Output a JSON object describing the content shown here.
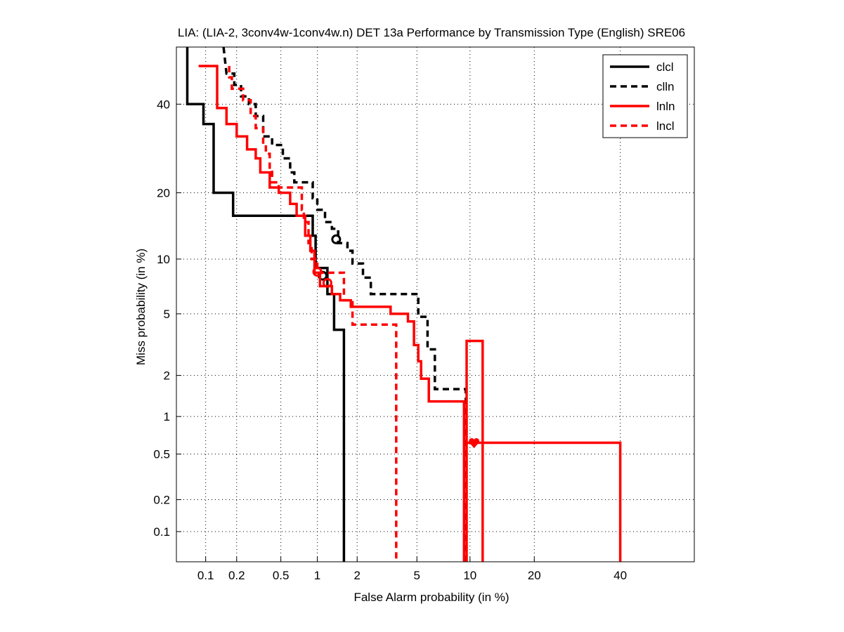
{
  "chart_data": {
    "type": "line",
    "title": "LIA: (LIA-2, 3conv4w-1conv4w.n) DET 13a Performance by Transmission Type (English) SRE06",
    "xlabel": "False Alarm probability (in %)",
    "ylabel": "Miss probability (in %)",
    "x_scale": "normal-deviate",
    "y_scale": "normal-deviate",
    "xlim": [
      0.05,
      60
    ],
    "ylim": [
      0.05,
      55
    ],
    "x_ticks": [
      0.1,
      0.2,
      0.5,
      1,
      2,
      5,
      10,
      20,
      40
    ],
    "x_tick_labels": [
      "0.1",
      "0.2",
      "0.5",
      "1",
      "2",
      "5",
      "10",
      "20",
      "40"
    ],
    "y_ticks": [
      0.1,
      0.2,
      0.5,
      1,
      2,
      5,
      10,
      20,
      40
    ],
    "y_tick_labels": [
      "0.1",
      "0.2",
      "0.5",
      "1",
      "2",
      "5",
      "10",
      "20",
      "40"
    ],
    "grid": true,
    "legend_position": "top-right",
    "series": [
      {
        "name": "clcl",
        "color": "#000000",
        "dash": "solid",
        "points": [
          [
            0.065,
            60
          ],
          [
            0.065,
            40
          ],
          [
            0.095,
            40
          ],
          [
            0.095,
            35
          ],
          [
            0.12,
            35
          ],
          [
            0.12,
            20
          ],
          [
            0.185,
            20
          ],
          [
            0.185,
            16
          ],
          [
            0.92,
            16
          ],
          [
            0.92,
            13
          ],
          [
            0.97,
            13
          ],
          [
            0.97,
            9
          ],
          [
            1.2,
            9
          ],
          [
            1.2,
            6.5
          ],
          [
            1.35,
            6.5
          ],
          [
            1.35,
            4
          ],
          [
            1.6,
            4
          ],
          [
            1.6,
            0.03
          ]
        ],
        "marker": {
          "type": "circle",
          "x": 1.1,
          "y": 8.2
        }
      },
      {
        "name": "clln",
        "color": "#000000",
        "dash": "dashed",
        "points": [
          [
            0.15,
            60
          ],
          [
            0.16,
            48
          ],
          [
            0.19,
            48
          ],
          [
            0.19,
            45
          ],
          [
            0.22,
            45
          ],
          [
            0.22,
            42
          ],
          [
            0.26,
            42
          ],
          [
            0.26,
            40
          ],
          [
            0.3,
            40
          ],
          [
            0.3,
            37
          ],
          [
            0.35,
            37
          ],
          [
            0.35,
            32
          ],
          [
            0.42,
            32
          ],
          [
            0.42,
            30
          ],
          [
            0.52,
            30
          ],
          [
            0.52,
            27
          ],
          [
            0.6,
            27
          ],
          [
            0.6,
            24
          ],
          [
            0.65,
            24
          ],
          [
            0.65,
            22
          ],
          [
            0.92,
            22
          ],
          [
            0.92,
            19
          ],
          [
            1.0,
            19
          ],
          [
            1.0,
            17
          ],
          [
            1.15,
            17
          ],
          [
            1.15,
            15
          ],
          [
            1.3,
            15
          ],
          [
            1.3,
            14
          ],
          [
            1.45,
            14
          ],
          [
            1.45,
            12
          ],
          [
            1.7,
            12
          ],
          [
            1.7,
            11
          ],
          [
            1.85,
            11
          ],
          [
            1.85,
            9.5
          ],
          [
            2.2,
            9.5
          ],
          [
            2.2,
            8
          ],
          [
            2.5,
            8
          ],
          [
            2.5,
            6.5
          ],
          [
            5.1,
            6.5
          ],
          [
            5.1,
            4.8
          ],
          [
            5.8,
            4.8
          ],
          [
            5.8,
            3
          ],
          [
            6.4,
            3
          ],
          [
            6.4,
            1.6
          ],
          [
            9.5,
            1.6
          ],
          [
            9.5,
            0.03
          ]
        ],
        "marker": {
          "type": "circle",
          "x": 1.4,
          "y": 12.5
        }
      },
      {
        "name": "lnln",
        "color": "#ff0000",
        "dash": "solid",
        "points": [
          [
            0.085,
            50
          ],
          [
            0.13,
            50
          ],
          [
            0.13,
            39
          ],
          [
            0.16,
            39
          ],
          [
            0.16,
            35
          ],
          [
            0.2,
            35
          ],
          [
            0.2,
            32
          ],
          [
            0.25,
            32
          ],
          [
            0.25,
            29
          ],
          [
            0.3,
            29
          ],
          [
            0.3,
            27
          ],
          [
            0.33,
            27
          ],
          [
            0.33,
            24
          ],
          [
            0.4,
            24
          ],
          [
            0.4,
            21
          ],
          [
            0.48,
            21
          ],
          [
            0.48,
            20
          ],
          [
            0.6,
            20
          ],
          [
            0.6,
            18
          ],
          [
            0.68,
            18
          ],
          [
            0.68,
            16
          ],
          [
            0.8,
            16
          ],
          [
            0.8,
            13
          ],
          [
            0.88,
            13
          ],
          [
            0.88,
            11
          ],
          [
            0.95,
            11
          ],
          [
            0.95,
            8.5
          ],
          [
            1.05,
            8.5
          ],
          [
            1.05,
            7.2
          ],
          [
            1.3,
            7.2
          ],
          [
            1.3,
            6.5
          ],
          [
            1.5,
            6.5
          ],
          [
            1.5,
            6
          ],
          [
            1.8,
            6
          ],
          [
            1.8,
            5.5
          ],
          [
            3.4,
            5.5
          ],
          [
            3.4,
            5
          ],
          [
            4.4,
            5
          ],
          [
            4.4,
            4.5
          ],
          [
            4.8,
            4.5
          ],
          [
            4.8,
            3.2
          ],
          [
            5.1,
            3.2
          ],
          [
            5.1,
            2.5
          ],
          [
            5.3,
            2.5
          ],
          [
            5.3,
            1.9
          ],
          [
            5.9,
            1.9
          ],
          [
            5.9,
            1.3
          ],
          [
            9.3,
            1.3
          ],
          [
            9.3,
            0.03
          ]
        ],
        "extra_paths": [
          [
            [
              9.6,
              0.03
            ],
            [
              9.6,
              3.4
            ],
            [
              11.6,
              3.4
            ],
            [
              11.6,
              0.03
            ]
          ],
          [
            [
              9.6,
              0.62
            ],
            [
              40,
              0.62
            ],
            [
              40,
              0.03
            ]
          ]
        ],
        "marker": {
          "type": "circle",
          "x": 1.2,
          "y": 7.5
        },
        "marker2": {
          "type": "heart",
          "x": 10.5,
          "y": 0.62
        }
      },
      {
        "name": "lncl",
        "color": "#ff0000",
        "dash": "dashed",
        "points": [
          [
            0.17,
            50
          ],
          [
            0.17,
            47
          ],
          [
            0.18,
            47
          ],
          [
            0.18,
            44
          ],
          [
            0.23,
            44
          ],
          [
            0.23,
            41
          ],
          [
            0.27,
            41
          ],
          [
            0.27,
            37
          ],
          [
            0.3,
            37
          ],
          [
            0.3,
            34
          ],
          [
            0.35,
            34
          ],
          [
            0.35,
            30
          ],
          [
            0.37,
            30
          ],
          [
            0.37,
            28
          ],
          [
            0.4,
            28
          ],
          [
            0.4,
            25
          ],
          [
            0.42,
            25
          ],
          [
            0.42,
            22
          ],
          [
            0.48,
            22
          ],
          [
            0.48,
            21
          ],
          [
            0.75,
            21
          ],
          [
            0.75,
            17
          ],
          [
            0.78,
            17
          ],
          [
            0.78,
            15
          ],
          [
            0.85,
            15
          ],
          [
            0.85,
            12
          ],
          [
            0.9,
            12
          ],
          [
            0.9,
            10
          ],
          [
            1.0,
            10
          ],
          [
            1.0,
            8.5
          ],
          [
            1.6,
            8.5
          ],
          [
            1.6,
            6
          ],
          [
            1.85,
            6
          ],
          [
            1.85,
            4.3
          ],
          [
            3.7,
            4.3
          ],
          [
            3.7,
            0.03
          ]
        ],
        "marker": {
          "type": "circle",
          "x": 1.0,
          "y": 8.6
        }
      }
    ]
  }
}
